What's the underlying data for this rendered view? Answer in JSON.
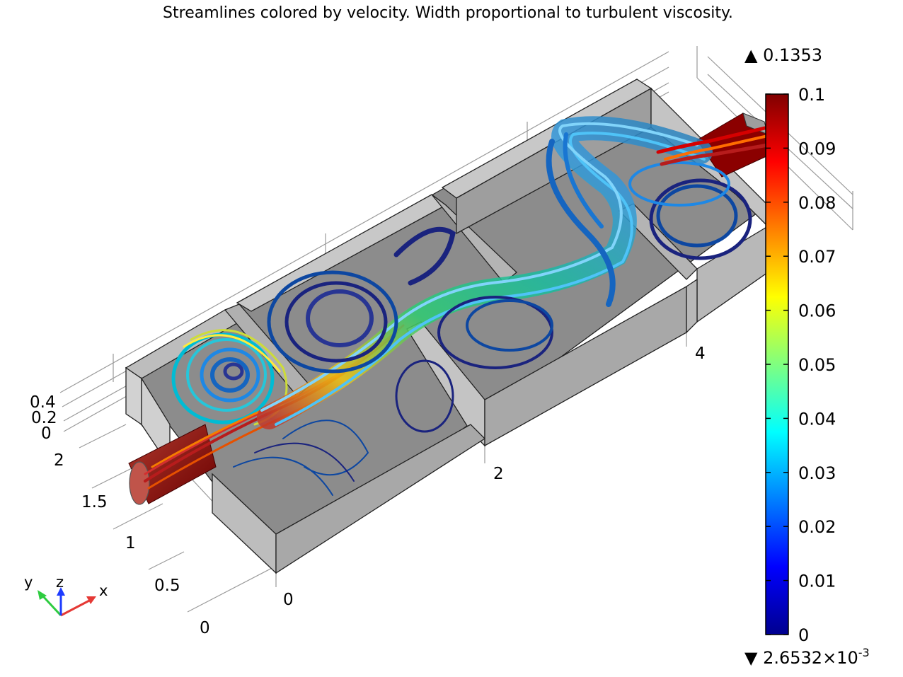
{
  "title": "Streamlines colored by velocity. Width proportional to turbulent viscosity.",
  "axes": {
    "x_ticks": [
      "0",
      "2",
      "4"
    ],
    "y_ticks": [
      "0",
      "0.5",
      "1",
      "1.5",
      "2"
    ],
    "z_ticks": [
      "0",
      "0.2",
      "0.4"
    ]
  },
  "triad": {
    "x": "x",
    "y": "y",
    "z": "z"
  },
  "colorbar": {
    "max_label": "▲ 0.1353",
    "min_label_base": "▼ 2.6532×10",
    "min_label_exp": "-3",
    "ticks": [
      "0.1",
      "0.09",
      "0.08",
      "0.07",
      "0.06",
      "0.05",
      "0.04",
      "0.03",
      "0.02",
      "0.01",
      "0"
    ],
    "colors": {
      "dark_red": "#800000",
      "red": "#ff0000",
      "orange": "#ff8000",
      "yellow": "#ffff00",
      "cyan": "#00ffff",
      "blue": "#0000ff",
      "dark_blue": "#00008f"
    }
  }
}
